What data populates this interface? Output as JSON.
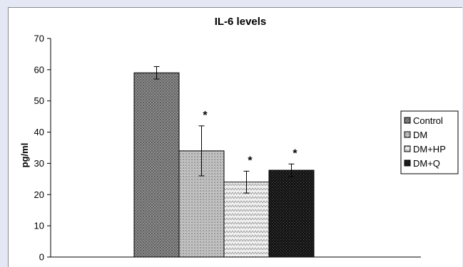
{
  "chart_data": {
    "type": "bar",
    "title": "IL-6 levels",
    "xlabel": "",
    "ylabel": "pg/ml",
    "ylim": [
      0,
      70
    ],
    "yticks": [
      0,
      10,
      20,
      30,
      40,
      50,
      60,
      70
    ],
    "grid": false,
    "legend_position": "right",
    "series": [
      {
        "name": "Control",
        "value": 59,
        "error": 2,
        "significance": "",
        "color": "#7a7a7a",
        "pattern": "dots-dark"
      },
      {
        "name": "DM",
        "value": 34,
        "error": 8,
        "significance": "*",
        "color": "#b4b4b4",
        "pattern": "dots-light"
      },
      {
        "name": "DM+HP",
        "value": 24,
        "error": 3.5,
        "significance": "*",
        "color": "#e6e6e6",
        "pattern": "zigzag"
      },
      {
        "name": "DM+Q",
        "value": 27.8,
        "error": 2,
        "significance": "*",
        "color": "#1e1e1e",
        "pattern": "dots-black"
      }
    ]
  }
}
